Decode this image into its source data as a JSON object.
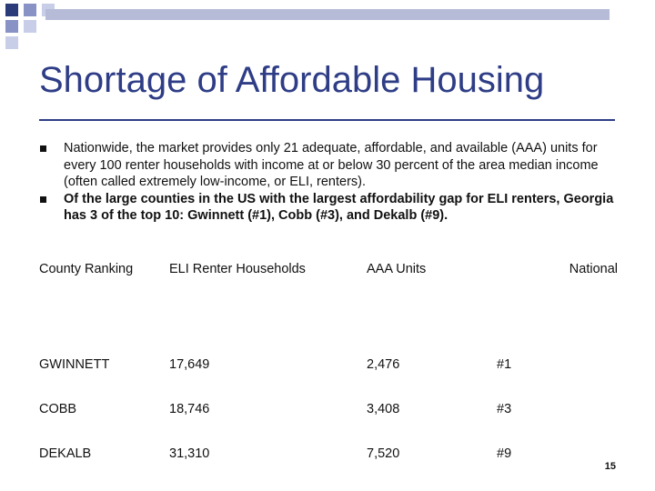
{
  "slide": {
    "title": "Shortage of Affordable Housing",
    "bullets": [
      "Nationwide, the market provides only 21 adequate, affordable, and available (AAA) units for every 100 renter households with income at or below 30 percent of the area median income (often called extremely low-income, or ELI, renters).",
      "Of the large counties in the US with the largest affordability gap for ELI renters, Georgia has 3 of the top 10: Gwinnett (#1), Cobb (#3), and Dekalb (#9)."
    ],
    "page_number": "15"
  },
  "table": {
    "headers": [
      "County Ranking",
      "ELI Renter Households",
      "AAA Units",
      "National"
    ],
    "rows": [
      [
        "GWINNETT",
        "17,649",
        "2,476",
        "#1"
      ],
      [
        "COBB",
        "18,746",
        "3,408",
        "#3"
      ],
      [
        "DEKALB",
        "31,310",
        "7,520",
        "#9"
      ]
    ]
  }
}
